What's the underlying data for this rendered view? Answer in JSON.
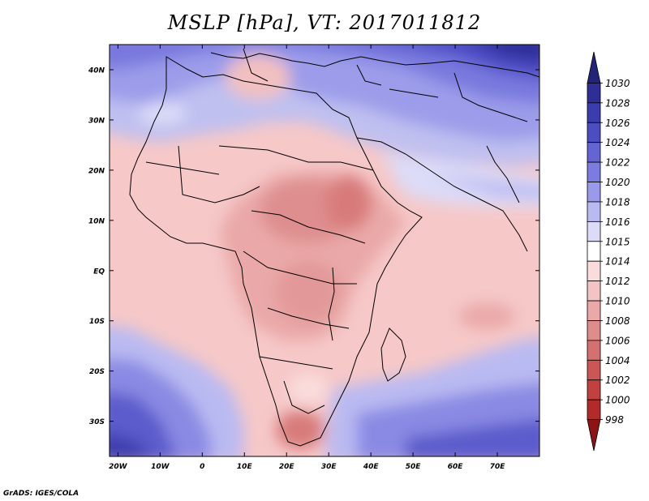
{
  "title": "MSLP [hPa], VT: 2017011812",
  "credit": "GrADS: IGES/COLA",
  "axes": {
    "lat_ticks": [
      "40N",
      "30N",
      "20N",
      "10N",
      "EQ",
      "10S",
      "20S",
      "30S"
    ],
    "lat_values": [
      40,
      30,
      20,
      10,
      0,
      -10,
      -20,
      -30
    ],
    "lon_ticks": [
      "20W",
      "10W",
      "0",
      "10E",
      "20E",
      "30E",
      "40E",
      "50E",
      "60E",
      "70E"
    ],
    "lon_values": [
      -20,
      -10,
      0,
      10,
      20,
      30,
      40,
      50,
      60,
      70
    ],
    "lon_range": [
      -22,
      80
    ],
    "lat_range": [
      -37,
      45
    ]
  },
  "colorbar": {
    "labels": [
      "1030",
      "1028",
      "1026",
      "1024",
      "1022",
      "1020",
      "1018",
      "1016",
      "1015",
      "1014",
      "1012",
      "1010",
      "1008",
      "1006",
      "1004",
      "1002",
      "1000",
      "998"
    ],
    "colors": [
      "#23237a",
      "#2e2e96",
      "#3c3cae",
      "#4d4dc2",
      "#6464d2",
      "#7c7ce0",
      "#9a9aea",
      "#babaf2",
      "#dcdcf8",
      "#ffffff",
      "#fadcdc",
      "#f4c4c4",
      "#eaa8a8",
      "#de8c8c",
      "#d47070",
      "#cc5656",
      "#c24040",
      "#b22a2a",
      "#8e1414"
    ]
  }
}
